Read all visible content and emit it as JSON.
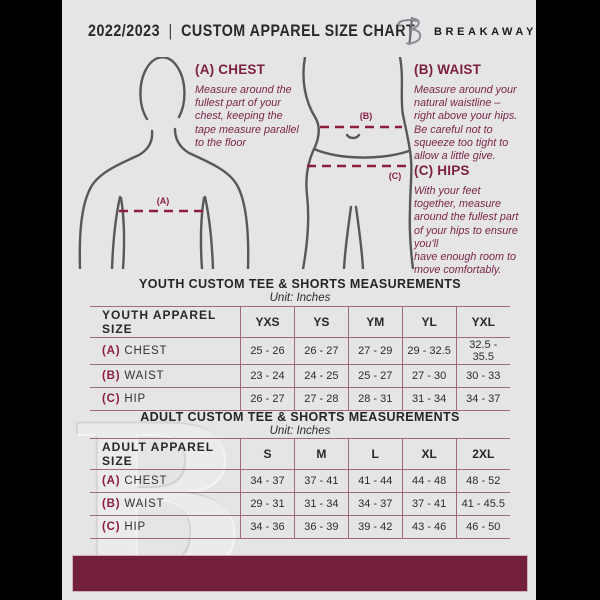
{
  "header": {
    "year": "2022/2023",
    "separator": "|",
    "title": "CUSTOM APPAREL SIZE CHART",
    "brand": "BREAKAWAY",
    "logo_letter": "B"
  },
  "diagram_labels": {
    "chest": "(A)",
    "waist": "(B)",
    "hips": "(C)"
  },
  "measurements": [
    {
      "heading": "(A) CHEST",
      "description": "Measure around the\nfullest part of your\nchest, keeping the\ntape measure parallel\nto the floor"
    },
    {
      "heading": "(B) WAIST",
      "description": "Measure around your\nnatural waistline –\nright above your hips.\nBe careful not to\nsqueeze too tight to\nallow a little give."
    },
    {
      "heading": "(C) HIPS",
      "description": "With your feet\ntogether, measure\naround the fullest part\nof your hips to ensure\nyou'll\nhave enough room to\nmove comfortably."
    }
  ],
  "youth_table": {
    "title": "YOUTH CUSTOM TEE & SHORTS MEASUREMENTS",
    "unit": "Unit: Inches",
    "header_label": "YOUTH APPAREL SIZE",
    "sizes": [
      "YXS",
      "YS",
      "YM",
      "YL",
      "YXL"
    ],
    "rows": [
      {
        "prefix": "(A)",
        "label": "CHEST",
        "values": [
          "25 - 26",
          "26 - 27",
          "27 - 29",
          "29 - 32.5",
          "32.5 - 35.5"
        ]
      },
      {
        "prefix": "(B)",
        "label": "WAIST",
        "values": [
          "23 - 24",
          "24 - 25",
          "25 - 27",
          "27 - 30",
          "30 - 33"
        ]
      },
      {
        "prefix": "(C)",
        "label": "HIP",
        "values": [
          "26 - 27",
          "27 - 28",
          "28 - 31",
          "31 - 34",
          "34 - 37"
        ]
      }
    ]
  },
  "adult_table": {
    "title": "ADULT CUSTOM TEE & SHORTS MEASUREMENTS",
    "unit": "Unit: Inches",
    "header_label": "ADULT APPAREL SIZE",
    "sizes": [
      "S",
      "M",
      "L",
      "XL",
      "2XL"
    ],
    "rows": [
      {
        "prefix": "(A)",
        "label": "CHEST",
        "values": [
          "34 - 37",
          "37 - 41",
          "41 - 44",
          "44 - 48",
          "48 - 52"
        ]
      },
      {
        "prefix": "(B)",
        "label": "WAIST",
        "values": [
          "29 - 31",
          "31 - 34",
          "34 - 37",
          "37 - 41",
          "41 - 45.5"
        ]
      },
      {
        "prefix": "(C)",
        "label": "HIP",
        "values": [
          "34 - 36",
          "36 - 39",
          "39 - 42",
          "43 - 46",
          "46 - 50"
        ]
      }
    ]
  },
  "watermark": {
    "letter": "B"
  },
  "colors": {
    "page_bg": "#e5e4e6",
    "margin_bg": "#000000",
    "maroon_heading": "#7d1f3f",
    "dash_maroon": "#8b1e3c",
    "table_line": "#a06b77",
    "footer_bar": "#74203a",
    "body_outline": "#58585a"
  }
}
